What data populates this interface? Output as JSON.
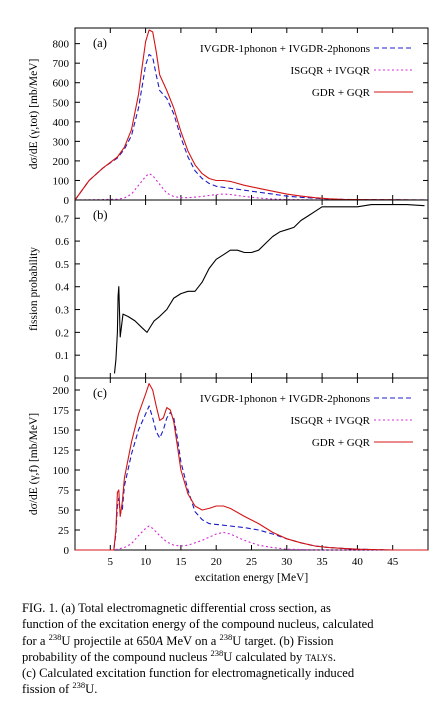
{
  "chart_data": [
    {
      "type": "line",
      "panel_label": "(a)",
      "ylabel": "dσ/dE (γ,tot) [mb/MeV]",
      "xlim": [
        0,
        50
      ],
      "ylim": [
        0,
        880
      ],
      "yticks": [
        "0",
        "100",
        "200",
        "300",
        "400",
        "500",
        "600",
        "700",
        "800"
      ],
      "grid": false,
      "legend_position": "top-right",
      "series": [
        {
          "name": "IVGDR-1phonon + IVGDR-2phonons",
          "color": "#1c1cc8",
          "dash": "dashed",
          "x": [
            0,
            2,
            4,
            6,
            7,
            8,
            9,
            9.5,
            10,
            10.5,
            11,
            11.5,
            12,
            13,
            14,
            15,
            16,
            17,
            18,
            19,
            20,
            22,
            24,
            26,
            28,
            30,
            32,
            34,
            36,
            38,
            40,
            45,
            50
          ],
          "y": [
            0,
            100,
            165,
            215,
            260,
            330,
            470,
            580,
            690,
            745,
            730,
            640,
            560,
            520,
            440,
            320,
            220,
            150,
            110,
            85,
            70,
            60,
            50,
            40,
            30,
            20,
            14,
            9,
            5,
            3,
            2,
            1,
            0
          ]
        },
        {
          "name": "ISGQR + IVGQR",
          "color": "#d42ad4",
          "dash": "dotted",
          "x": [
            0,
            4,
            6,
            7,
            8,
            9,
            10,
            10.5,
            11,
            12,
            13,
            14,
            15,
            16,
            18,
            20,
            21,
            22,
            24,
            26,
            28,
            30,
            35,
            50
          ],
          "y": [
            0,
            2,
            4,
            10,
            30,
            75,
            120,
            135,
            125,
            80,
            35,
            18,
            12,
            12,
            18,
            28,
            30,
            28,
            18,
            10,
            5,
            2,
            0,
            0
          ]
        },
        {
          "name": "GDR + GQR",
          "color": "#d41414",
          "dash": "solid",
          "x": [
            0,
            2,
            4,
            6,
            7,
            8,
            9,
            9.5,
            10,
            10.5,
            11,
            11.5,
            12,
            13,
            14,
            15,
            16,
            17,
            18,
            19,
            20,
            21,
            22,
            24,
            26,
            28,
            30,
            32,
            34,
            36,
            38,
            40,
            45,
            50
          ],
          "y": [
            0,
            100,
            165,
            220,
            270,
            360,
            540,
            680,
            810,
            870,
            860,
            760,
            640,
            560,
            470,
            350,
            250,
            180,
            135,
            110,
            100,
            100,
            95,
            75,
            60,
            45,
            30,
            20,
            12,
            6,
            3,
            2,
            1,
            0
          ]
        }
      ]
    },
    {
      "type": "line",
      "panel_label": "(b)",
      "ylabel": "fission probability",
      "xlim": [
        0,
        50
      ],
      "ylim": [
        0,
        0.78
      ],
      "yticks": [
        "0",
        "0.1",
        "0.2",
        "0.3",
        "0.4",
        "0.5",
        "0.6",
        "0.7"
      ],
      "grid": false,
      "series": [
        {
          "color": "#000000",
          "dash": "solid",
          "x": [
            5.6,
            5.8,
            6.0,
            6.1,
            6.2,
            6.4,
            6.8,
            7.5,
            8.5,
            9.5,
            10.2,
            10.8,
            11.2,
            12,
            13,
            14,
            15,
            16,
            17,
            18,
            19,
            20,
            21,
            22,
            23,
            24,
            25,
            26,
            27,
            28,
            29,
            30,
            31,
            32,
            33,
            34,
            35,
            36,
            38,
            40,
            42,
            45,
            47,
            49.5
          ],
          "y": [
            0.02,
            0.08,
            0.2,
            0.36,
            0.4,
            0.18,
            0.28,
            0.27,
            0.25,
            0.22,
            0.2,
            0.23,
            0.25,
            0.27,
            0.3,
            0.35,
            0.37,
            0.38,
            0.38,
            0.42,
            0.48,
            0.52,
            0.54,
            0.56,
            0.56,
            0.55,
            0.55,
            0.56,
            0.59,
            0.62,
            0.64,
            0.65,
            0.66,
            0.69,
            0.71,
            0.73,
            0.75,
            0.75,
            0.75,
            0.75,
            0.76,
            0.76,
            0.76,
            0.755
          ]
        }
      ]
    },
    {
      "type": "line",
      "panel_label": "(c)",
      "ylabel": "dσ/dE (γ,f) [mb/MeV]",
      "xlabel": "excitation energy [MeV]",
      "xlim": [
        0,
        50
      ],
      "ylim": [
        0,
        215
      ],
      "xticks": [
        "5",
        "10",
        "15",
        "20",
        "25",
        "30",
        "35",
        "40",
        "45"
      ],
      "yticks": [
        "0",
        "25",
        "50",
        "75",
        "100",
        "125",
        "150",
        "175",
        "200"
      ],
      "grid": false,
      "legend_position": "top-right",
      "series": [
        {
          "name": "IVGDR-1phonon + IVGDR-2phonons",
          "color": "#1c1cc8",
          "dash": "dashed",
          "x": [
            0,
            5.5,
            5.8,
            6.0,
            6.2,
            6.4,
            6.7,
            7,
            8,
            9,
            10,
            10.5,
            11,
            11.5,
            12,
            12.5,
            13,
            13.5,
            14,
            14.5,
            15,
            16,
            17,
            18,
            19,
            20,
            22,
            24,
            26,
            28,
            30,
            32,
            34,
            36,
            38,
            40,
            45,
            50
          ],
          "y": [
            0,
            0,
            20,
            55,
            65,
            45,
            50,
            80,
            120,
            150,
            170,
            180,
            165,
            148,
            140,
            150,
            165,
            172,
            165,
            140,
            110,
            75,
            48,
            38,
            33,
            32,
            30,
            28,
            25,
            20,
            14,
            9,
            5,
            3,
            2,
            1,
            0,
            0
          ]
        },
        {
          "name": "ISGQR + IVGQR",
          "color": "#d42ad4",
          "dash": "dotted",
          "x": [
            0,
            5.5,
            7,
            8,
            9,
            10,
            10.5,
            11,
            12,
            13,
            14,
            15,
            16,
            18,
            20,
            21,
            22,
            24,
            26,
            28,
            30,
            35,
            50
          ],
          "y": [
            0,
            0,
            3,
            8,
            18,
            27,
            30,
            27,
            18,
            10,
            6,
            5,
            6,
            12,
            20,
            22,
            20,
            12,
            6,
            3,
            1,
            0,
            0
          ]
        },
        {
          "name": "GDR + GQR",
          "color": "#d41414",
          "dash": "solid",
          "x": [
            0,
            5.5,
            5.8,
            6.0,
            6.2,
            6.4,
            6.7,
            7,
            8,
            9,
            10,
            10.5,
            11,
            11.5,
            12,
            12.5,
            13,
            13.5,
            14,
            14.5,
            15,
            16,
            17,
            18,
            19,
            20,
            21,
            22,
            24,
            26,
            28,
            30,
            32,
            34,
            36,
            38,
            40,
            45,
            50
          ],
          "y": [
            0,
            0,
            25,
            72,
            75,
            42,
            60,
            90,
            135,
            170,
            195,
            208,
            200,
            180,
            162,
            165,
            178,
            175,
            160,
            130,
            100,
            70,
            55,
            50,
            52,
            55,
            55,
            52,
            42,
            33,
            22,
            14,
            9,
            5,
            3,
            2,
            1,
            0,
            0
          ]
        }
      ]
    }
  ],
  "caption": {
    "line1": "FIG. 1. (a) Total electromagnetic differential cross section, as",
    "line2": "function of the excitation energy of the compound nucleus, calculated",
    "line3_a": "for a ",
    "line3_sup1": "238",
    "line3_b": "U projectile at 650",
    "line3_italic": "A",
    "line3_c": " MeV on a ",
    "line3_sup2": "238",
    "line3_d": "U target. (b) Fission",
    "line4_a": "probability of the compound nucleus ",
    "line4_sup": "238",
    "line4_b": "U calculated by ",
    "line4_sc": "talys",
    "line4_c": ".",
    "line5": "(c) Calculated excitation function for electromagnetically induced",
    "line6_a": "fission of ",
    "line6_sup": "238",
    "line6_b": "U."
  }
}
